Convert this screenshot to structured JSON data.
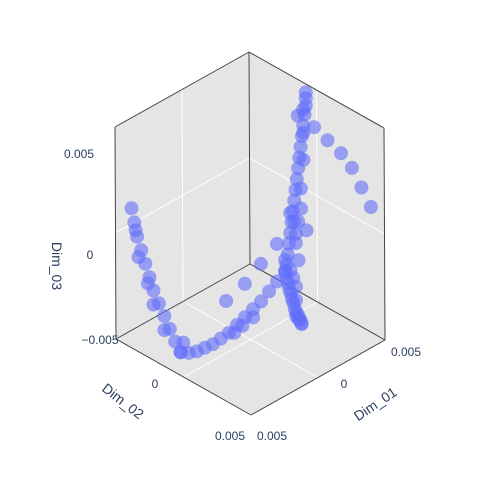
{
  "chart_data": {
    "type": "scatter",
    "title": "",
    "xlabel": "Dim_01",
    "ylabel": "Dim_02",
    "zlabel": "Dim_03",
    "xlim": [
      -0.005,
      0.005
    ],
    "ylim": [
      -0.005,
      0.005
    ],
    "zlim": [
      -0.005,
      0.005
    ],
    "grid": true,
    "marker_color": "#636efa",
    "ticks": {
      "x": [
        "0",
        "0.005"
      ],
      "y": [
        "0",
        "0.005"
      ],
      "z": [
        "−0.005",
        "0",
        "0.005"
      ]
    },
    "series": [
      {
        "points": [
          [
            -0.0008,
            -0.005,
            0.0046
          ],
          [
            -0.0007,
            -0.0049,
            0.0044
          ],
          [
            -0.0006,
            -0.0048,
            0.0041
          ],
          [
            -0.0005,
            -0.0046,
            0.0038
          ],
          [
            -0.0004,
            -0.0044,
            0.0034
          ],
          [
            -0.0003,
            -0.0042,
            0.003
          ],
          [
            -0.0002,
            -0.004,
            0.0026
          ],
          [
            -0.0001,
            -0.0038,
            0.0022
          ],
          [
            0.0,
            -0.0036,
            0.0018
          ],
          [
            0.0001,
            -0.0034,
            0.0014
          ],
          [
            0.0002,
            -0.0032,
            0.001
          ],
          [
            0.0003,
            -0.003,
            0.0006
          ],
          [
            0.0004,
            -0.0028,
            0.0002
          ],
          [
            0.0005,
            -0.0026,
            -0.0002
          ],
          [
            0.0006,
            -0.0024,
            -0.0006
          ],
          [
            0.0007,
            -0.0022,
            -0.001
          ],
          [
            0.0008,
            -0.002,
            -0.0014
          ],
          [
            0.0009,
            -0.0018,
            -0.0018
          ],
          [
            0.001,
            -0.0016,
            -0.002
          ],
          [
            0.0013,
            -0.0014,
            -0.0021
          ],
          [
            0.0016,
            -0.0012,
            -0.0022
          ],
          [
            0.0019,
            -0.001,
            -0.0023
          ],
          [
            0.0022,
            -0.0008,
            -0.0023
          ],
          [
            0.0025,
            -0.0006,
            -0.0024
          ],
          [
            0.0028,
            -0.0004,
            -0.0024
          ],
          [
            0.0031,
            -0.0002,
            -0.0025
          ],
          [
            0.0034,
            0.0,
            -0.0025
          ],
          [
            0.0037,
            0.0002,
            -0.0024
          ],
          [
            0.004,
            0.0004,
            -0.0024
          ],
          [
            0.0043,
            0.0006,
            -0.0023
          ],
          [
            0.0046,
            0.0008,
            -0.0023
          ],
          [
            0.0048,
            0.001,
            -0.0022
          ],
          [
            0.001,
            -0.0016,
            -0.002
          ],
          [
            0.0008,
            -0.0012,
            -0.0024
          ],
          [
            0.0006,
            -0.0008,
            -0.0028
          ],
          [
            0.0004,
            -0.0004,
            -0.0032
          ],
          [
            0.0002,
            0.0,
            -0.0035
          ],
          [
            0.0,
            0.0004,
            -0.0038
          ],
          [
            -0.0002,
            0.0008,
            -0.0041
          ],
          [
            -0.0004,
            0.0012,
            -0.0044
          ],
          [
            -0.0006,
            0.0016,
            -0.0046
          ],
          [
            -0.0008,
            0.002,
            -0.0048
          ],
          [
            -0.001,
            0.0024,
            -0.0049
          ],
          [
            -0.0012,
            0.0028,
            -0.005
          ],
          [
            -0.0014,
            0.0032,
            -0.005
          ],
          [
            -0.0016,
            0.0036,
            -0.0049
          ],
          [
            -0.0016,
            0.0036,
            -0.0049
          ],
          [
            -0.0018,
            0.0038,
            -0.0044
          ],
          [
            -0.002,
            0.004,
            -0.0038
          ],
          [
            -0.0022,
            0.0042,
            -0.0032
          ],
          [
            -0.0024,
            0.0044,
            -0.0026
          ],
          [
            -0.0026,
            0.0046,
            -0.002
          ],
          [
            -0.0028,
            0.0047,
            -0.0014
          ],
          [
            -0.003,
            0.0048,
            -0.0008
          ],
          [
            -0.0032,
            0.0049,
            -0.0002
          ],
          [
            -0.0034,
            0.005,
            0.0004
          ],
          [
            -0.0036,
            0.005,
            0.001
          ],
          [
            -0.0038,
            0.005,
            0.0016
          ],
          [
            -0.0004,
            -0.004,
            0.004
          ],
          [
            0.0004,
            -0.0044,
            0.0036
          ],
          [
            0.0012,
            -0.0046,
            0.0032
          ],
          [
            0.002,
            -0.0048,
            0.0028
          ],
          [
            0.0028,
            -0.0048,
            0.0024
          ],
          [
            0.0036,
            -0.0047,
            0.0018
          ],
          [
            0.0044,
            -0.0046,
            0.0012
          ],
          [
            0.0004,
            -0.0026,
            0.0002
          ],
          [
            0.001,
            -0.0026,
            0.0
          ],
          [
            0.0016,
            -0.0026,
            -0.0002
          ],
          [
            0.0003,
            -0.003,
            -0.0004
          ],
          [
            0.0006,
            -0.0028,
            -0.0008
          ],
          [
            0.0,
            -0.002,
            -0.0012
          ],
          [
            -0.0004,
            -0.0012,
            -0.002
          ],
          [
            -0.0008,
            -0.0004,
            -0.0028
          ],
          [
            0.0008,
            -0.0018,
            -0.0016
          ],
          [
            0.0014,
            -0.0016,
            -0.0018
          ],
          [
            0.002,
            -0.0012,
            -0.0018
          ],
          [
            -0.0012,
            0.0006,
            -0.0034
          ],
          [
            -0.0002,
            0.001,
            -0.0044
          ],
          [
            0.0002,
            0.0008,
            -0.004
          ],
          [
            0.0006,
            0.0004,
            -0.0036
          ],
          [
            -0.002,
            0.003,
            -0.0048
          ],
          [
            -0.0006,
            -0.0046,
            0.004
          ],
          [
            -0.0002,
            -0.0042,
            0.0032
          ],
          [
            0.0002,
            -0.0038,
            0.0022
          ],
          [
            0.0006,
            -0.0032,
            0.0012
          ],
          [
            0.0008,
            -0.003,
            0.0004
          ],
          [
            0.0012,
            -0.0022,
            -0.0008
          ],
          [
            0.0016,
            -0.002,
            -0.0014
          ],
          [
            0.0024,
            -0.001,
            -0.002
          ],
          [
            0.003,
            -0.0004,
            -0.0022
          ],
          [
            0.0038,
            0.0004,
            -0.0024
          ],
          [
            0.0044,
            0.0008,
            -0.0022
          ],
          [
            -0.003,
            0.0046,
            -0.0018
          ],
          [
            -0.0034,
            0.0049,
            -0.0006
          ],
          [
            -0.0036,
            0.0049,
            0.0006
          ],
          [
            -0.0028,
            0.0044,
            -0.0028
          ],
          [
            -0.0024,
            0.004,
            -0.004
          ]
        ]
      }
    ]
  }
}
